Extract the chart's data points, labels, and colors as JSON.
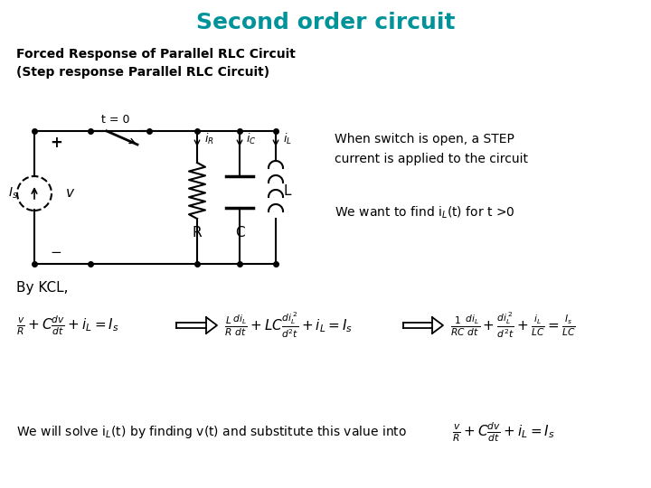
{
  "title": "Second order circuit",
  "title_color": "#00939A",
  "subtitle": "Forced Response of Parallel RLC Circuit\n(Step response Parallel RLC Circuit)",
  "bg_color": "#ffffff",
  "text_color": "#000000",
  "when_switch_text": "When switch is open, a STEP\ncurrent is applied to the circuit",
  "find_text": "We want to find i$_L$(t) for t >0",
  "by_kcl": "By KCL,",
  "bottom_text": "We will solve i$_L$(t) by finding v(t) and substitute this value into"
}
